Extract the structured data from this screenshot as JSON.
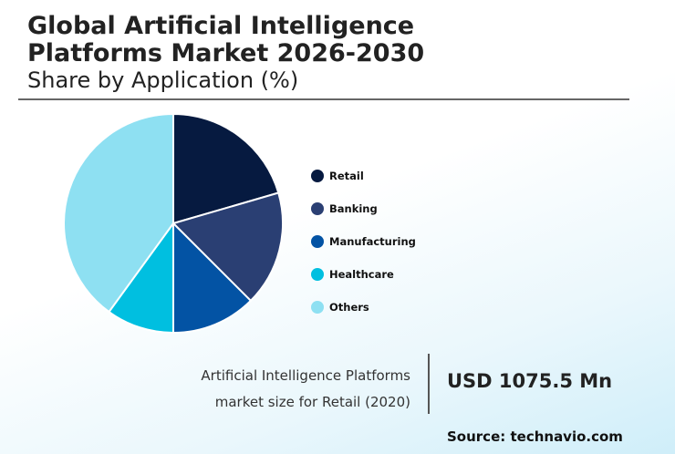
{
  "title_line1": "Global Artificial Intelligence",
  "title_line2": "Platforms Market 2026-2030",
  "subtitle": "Share by Application (%)",
  "chart_data": {
    "type": "pie",
    "title": "Global Artificial Intelligence Platforms Market 2026-2030 Share by Application (%)",
    "categories": [
      "Retail",
      "Banking",
      "Manufacturing",
      "Healthcare",
      "Others"
    ],
    "values": [
      20.5,
      17,
      12.5,
      10,
      40
    ],
    "colors": [
      "#061a40",
      "#2a3f73",
      "#0353a4",
      "#00bfe0",
      "#8ee0f2"
    ],
    "legend_position": "right"
  },
  "callout": {
    "line1": "Artificial Intelligence Platforms",
    "line2": "market size for Retail (2020)",
    "value": "USD 1075.5 Mn"
  },
  "source": "Source: technavio.com"
}
